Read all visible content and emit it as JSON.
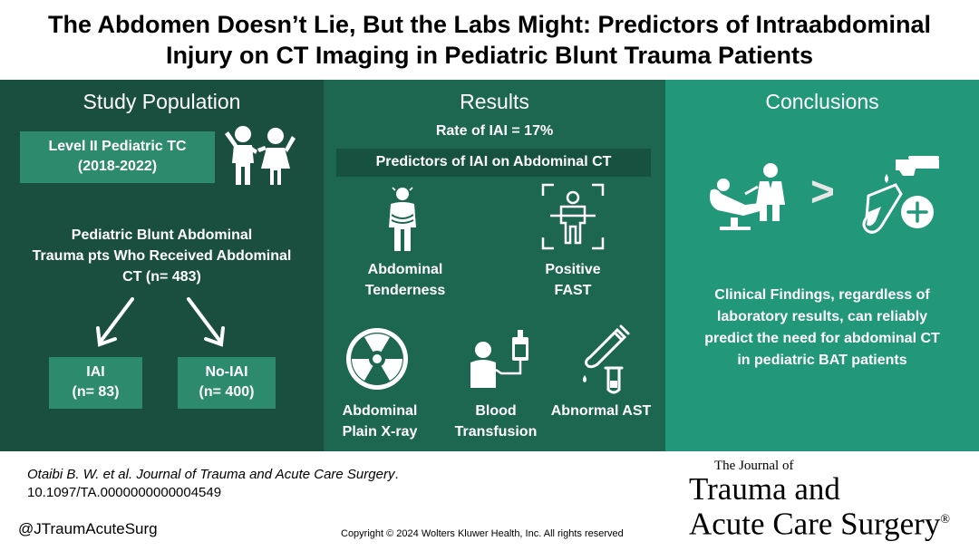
{
  "title": {
    "line1": "The Abdomen Doesn’t Lie, But the Labs Might: Predictors of Intraabdominal",
    "line2": "Injury on CT Imaging in Pediatric Blunt Trauma Patients"
  },
  "study_population": {
    "heading": "Study Population",
    "center_line1": "Level II Pediatric TC",
    "center_line2": "(2018-2022)",
    "cohort_line1": "Pediatric Blunt Abdominal",
    "cohort_line2": "Trauma pts Who Received Abdominal",
    "cohort_line3": "CT (n= 483)",
    "group_iai_label": "IAI",
    "group_iai_n": "(n= 83)",
    "group_noiai_label": "No-IAI",
    "group_noiai_n": "(n= 400)"
  },
  "results": {
    "heading": "Results",
    "rate": "Rate of IAI = 17%",
    "predictors_heading": "Predictors of IAI on Abdominal CT",
    "predictors": [
      {
        "line1": "Abdominal",
        "line2": "Tenderness"
      },
      {
        "line1": "Positive",
        "line2": "FAST"
      },
      {
        "line1": "Abdominal",
        "line2": "Plain X-ray"
      },
      {
        "line1": "Blood",
        "line2": "Transfusion"
      },
      {
        "line1": "Abnormal AST",
        "line2": ""
      }
    ]
  },
  "conclusions": {
    "heading": "Conclusions",
    "comparison_symbol": ">",
    "line1": "Clinical Findings, regardless of",
    "line2": "laboratory results, can reliably",
    "line3": "predict the need for abdominal CT",
    "line4": "in pediatric BAT patients"
  },
  "footer": {
    "citation_authors": "Otaibi B. W. et al. Journal of Trauma and Acute Care Surgery",
    "citation_period": ".",
    "doi": "10.1097/TA.0000000000004549",
    "handle": "@JTraumAcuteSurg",
    "copyright": "Copyright © 2024  Wolters Kluwer Health, Inc. All rights reserved",
    "journal_small": "The Journal of",
    "journal_line1": "Trauma and",
    "journal_line2": "Acute Care Surgery",
    "journal_mark": "®"
  },
  "colors": {
    "panel1": "#1a4f3f",
    "panel2": "#1d6751",
    "panel3": "#22977a",
    "box": "#2e8a6c"
  }
}
